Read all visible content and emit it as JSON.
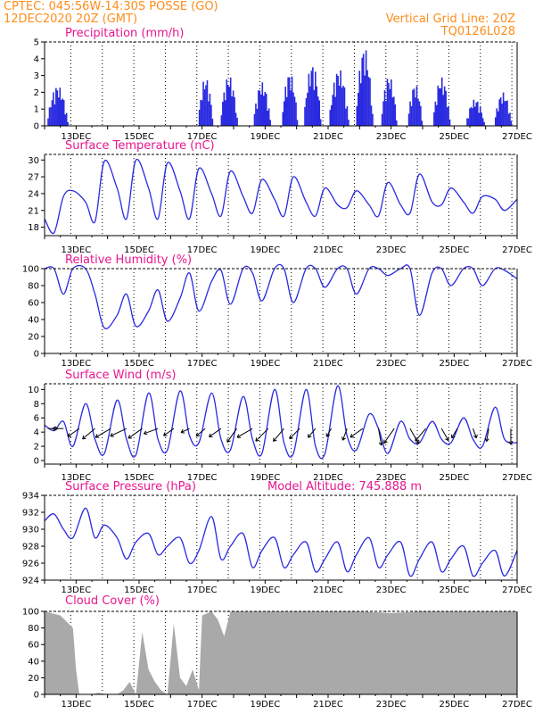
{
  "header": {
    "line1": "CPTEC:   045:56W-14:30S   POSSE (GO)",
    "line2": "12DEC2020 20Z (GMT)",
    "right1": "Vertical Grid Line: 20Z",
    "right2": "TQ0126L028"
  },
  "colors": {
    "header": "#ff8c1a",
    "title": "#e8168f",
    "line": "#2a2ae0",
    "bar": "#2a2ae0",
    "cloud": "#a9a9a9",
    "arrow": "#000000"
  },
  "dates": [
    "13DEC",
    "15DEC",
    "17DEC",
    "19DEC",
    "21DEC",
    "23DEC",
    "25DEC",
    "27DEC"
  ],
  "chart_data": [
    {
      "type": "bar",
      "title": "Precipitation (mm/h)",
      "ylim": [
        0,
        5
      ],
      "yticks": [
        "0",
        "1",
        "2",
        "3",
        "4",
        "5"
      ],
      "x_start_day": 12.0,
      "x_end_day": 27.0,
      "episodes": [
        {
          "start": 12.05,
          "end": 12.9,
          "peak": 2.4
        },
        {
          "start": 16.85,
          "end": 17.45,
          "peak": 2.9
        },
        {
          "start": 17.55,
          "end": 18.25,
          "peak": 3.0
        },
        {
          "start": 18.6,
          "end": 19.3,
          "peak": 2.6
        },
        {
          "start": 19.5,
          "end": 20.15,
          "peak": 3.2
        },
        {
          "start": 20.2,
          "end": 20.9,
          "peak": 3.7
        },
        {
          "start": 21.0,
          "end": 21.8,
          "peak": 3.4
        },
        {
          "start": 21.85,
          "end": 22.55,
          "peak": 4.7
        },
        {
          "start": 22.65,
          "end": 23.3,
          "peak": 3.0
        },
        {
          "start": 23.5,
          "end": 24.1,
          "peak": 2.5
        },
        {
          "start": 24.3,
          "end": 25.0,
          "peak": 2.9
        },
        {
          "start": 25.35,
          "end": 26.1,
          "peak": 1.6
        },
        {
          "start": 26.25,
          "end": 26.95,
          "peak": 2.0
        }
      ]
    },
    {
      "type": "line",
      "title": "Surface Temperature (nC)",
      "ylim": [
        16.5,
        31
      ],
      "yticks": [
        "18",
        "21",
        "24",
        "27",
        "30"
      ],
      "x": [
        12.0,
        12.3,
        12.6,
        12.9,
        13.3,
        13.6,
        13.9,
        14.3,
        14.6,
        14.9,
        15.3,
        15.6,
        15.9,
        16.3,
        16.6,
        16.9,
        17.3,
        17.6,
        17.9,
        18.3,
        18.6,
        18.9,
        19.3,
        19.6,
        19.9,
        20.3,
        20.6,
        20.9,
        21.3,
        21.6,
        21.9,
        22.3,
        22.6,
        22.9,
        23.3,
        23.6,
        23.9,
        24.3,
        24.6,
        24.9,
        25.3,
        25.6,
        25.9,
        26.3,
        26.6,
        27.0
      ],
      "y": [
        19.5,
        17.0,
        23.5,
        24.5,
        22.5,
        19.0,
        29.8,
        25.0,
        19.5,
        30.0,
        25.0,
        19.5,
        29.5,
        24.5,
        19.5,
        28.5,
        24.0,
        20.0,
        28.0,
        23.5,
        20.5,
        26.5,
        23.0,
        20.0,
        27.0,
        22.5,
        20.0,
        25.0,
        22.0,
        21.5,
        24.5,
        22.0,
        20.0,
        26.0,
        22.0,
        20.5,
        27.5,
        22.5,
        22.0,
        25.0,
        22.5,
        20.5,
        23.5,
        23.0,
        21.0,
        23.0
      ]
    },
    {
      "type": "line",
      "title": "Relative Humidity (%)",
      "ylim": [
        0,
        100
      ],
      "yticks": [
        "0",
        "20",
        "40",
        "60",
        "80",
        "100"
      ],
      "x": [
        12.0,
        12.3,
        12.6,
        12.9,
        13.3,
        13.6,
        13.9,
        14.3,
        14.6,
        14.9,
        15.3,
        15.6,
        15.9,
        16.3,
        16.6,
        16.9,
        17.3,
        17.6,
        17.9,
        18.3,
        18.6,
        18.9,
        19.3,
        19.6,
        19.9,
        20.3,
        20.6,
        20.9,
        21.3,
        21.6,
        21.9,
        22.3,
        22.6,
        22.9,
        23.3,
        23.6,
        23.9,
        24.3,
        24.6,
        24.9,
        25.3,
        25.6,
        25.9,
        26.3,
        26.6,
        27.0
      ],
      "y": [
        100,
        100,
        70,
        100,
        100,
        70,
        30,
        45,
        70,
        32,
        50,
        75,
        38,
        65,
        95,
        50,
        85,
        98,
        58,
        100,
        95,
        62,
        100,
        100,
        60,
        100,
        100,
        78,
        100,
        100,
        70,
        100,
        100,
        92,
        100,
        100,
        45,
        95,
        100,
        80,
        100,
        100,
        80,
        100,
        98,
        88
      ]
    },
    {
      "type": "line",
      "title": "Surface Wind (m/s)",
      "ylim": [
        -0.5,
        10.8
      ],
      "yticks": [
        "0",
        "2",
        "4",
        "6",
        "8",
        "10"
      ],
      "x": [
        12.0,
        12.3,
        12.6,
        12.9,
        13.3,
        13.6,
        13.9,
        14.3,
        14.6,
        14.9,
        15.3,
        15.6,
        15.9,
        16.3,
        16.6,
        16.9,
        17.3,
        17.6,
        17.9,
        18.3,
        18.6,
        18.9,
        19.3,
        19.6,
        19.9,
        20.3,
        20.6,
        20.9,
        21.3,
        21.6,
        21.9,
        22.3,
        22.6,
        22.9,
        23.3,
        23.6,
        23.9,
        24.3,
        24.6,
        24.9,
        25.3,
        25.6,
        25.9,
        26.3,
        26.6,
        27.0
      ],
      "y": [
        5.0,
        4.2,
        5.5,
        2.0,
        8.0,
        3.0,
        1.0,
        8.5,
        3.0,
        0.8,
        9.5,
        3.0,
        1.5,
        9.8,
        3.5,
        2.5,
        9.5,
        3.0,
        1.5,
        9.0,
        3.0,
        1.0,
        10.0,
        2.5,
        1.0,
        10.0,
        2.0,
        1.0,
        10.5,
        3.5,
        1.5,
        6.5,
        4.5,
        1.0,
        5.5,
        3.0,
        2.5,
        5.5,
        3.0,
        2.5,
        6.0,
        3.0,
        2.0,
        7.5,
        3.0,
        2.5
      ]
    },
    {
      "type": "line",
      "title": "Surface Pressure (hPa)",
      "annotation": "Model Altitude: 745.888 m",
      "ylim": [
        924,
        934
      ],
      "yticks": [
        "924",
        "926",
        "928",
        "930",
        "932",
        "934"
      ],
      "x": [
        12.0,
        12.3,
        12.6,
        12.9,
        13.3,
        13.6,
        13.9,
        14.3,
        14.6,
        14.9,
        15.3,
        15.6,
        15.9,
        16.3,
        16.6,
        16.9,
        17.3,
        17.6,
        17.9,
        18.3,
        18.6,
        18.9,
        19.3,
        19.6,
        19.9,
        20.3,
        20.6,
        20.9,
        21.3,
        21.6,
        21.9,
        22.3,
        22.6,
        22.9,
        23.3,
        23.6,
        23.9,
        24.3,
        24.6,
        24.9,
        25.3,
        25.6,
        25.9,
        26.3,
        26.6,
        27.0
      ],
      "y": [
        931.0,
        931.8,
        930.0,
        929.0,
        932.5,
        929.0,
        930.5,
        929.0,
        926.5,
        928.5,
        929.5,
        927.0,
        928.0,
        929.0,
        926.0,
        927.5,
        931.5,
        926.5,
        928.0,
        929.5,
        925.5,
        927.5,
        929.0,
        925.5,
        927.0,
        928.5,
        925.0,
        926.5,
        928.5,
        925.0,
        927.0,
        929.0,
        925.5,
        927.0,
        928.5,
        924.5,
        926.5,
        928.5,
        925.0,
        926.5,
        928.0,
        924.5,
        926.0,
        927.5,
        924.5,
        927.5
      ]
    },
    {
      "type": "area",
      "title": "Cloud Cover (%)",
      "ylim": [
        0,
        100
      ],
      "yticks": [
        "0",
        "20",
        "40",
        "60",
        "80",
        "100"
      ],
      "x": [
        12.0,
        12.5,
        12.9,
        13.0,
        13.1,
        13.5,
        13.7,
        14.0,
        14.3,
        14.5,
        14.7,
        14.9,
        15.1,
        15.3,
        15.5,
        15.7,
        15.9,
        16.1,
        16.3,
        16.5,
        16.7,
        16.9,
        17.0,
        17.3,
        17.5,
        17.7,
        17.9,
        18.1,
        18.5,
        19.0,
        20.0,
        21.0,
        22.0,
        23.0,
        24.0,
        25.0,
        26.0,
        27.0
      ],
      "y": [
        100,
        95,
        80,
        30,
        0,
        0,
        2,
        0,
        0,
        5,
        15,
        0,
        75,
        30,
        15,
        5,
        0,
        85,
        20,
        10,
        30,
        5,
        95,
        100,
        90,
        70,
        100,
        100,
        100,
        100,
        100,
        100,
        100,
        98,
        100,
        100,
        100,
        100
      ]
    }
  ]
}
